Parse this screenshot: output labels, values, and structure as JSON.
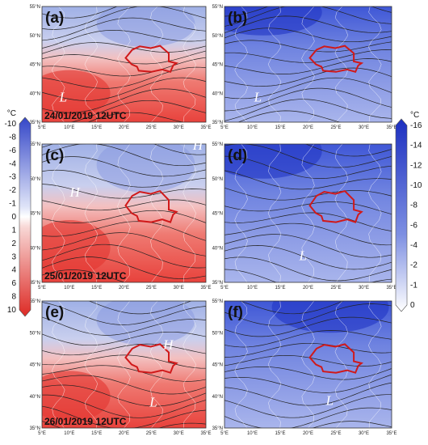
{
  "panels": [
    {
      "label": "(a)",
      "date": "24/01/2019 12UTC",
      "systems": [
        "L"
      ]
    },
    {
      "label": "(b)",
      "systems": [
        "L"
      ]
    },
    {
      "label": "(c)",
      "date": "25/01/2019 12UTC",
      "systems": [
        "H",
        "H"
      ]
    },
    {
      "label": "(d)",
      "systems": [
        "L"
      ]
    },
    {
      "label": "(e)",
      "date": "26/01/2019 12UTC",
      "systems": [
        "H",
        "L"
      ]
    },
    {
      "label": "(f)",
      "systems": [
        "L"
      ]
    }
  ],
  "lat_ticks": [
    "55°N",
    "50°N",
    "45°N",
    "40°N",
    "35°N"
  ],
  "lon_ticks": [
    "5°E",
    "10°E",
    "15°E",
    "20°E",
    "25°E",
    "30°E",
    "35°E"
  ],
  "colorbar_left": {
    "unit": "°C",
    "labels": [
      -10,
      -8,
      -6,
      -4,
      -3,
      -2,
      -1,
      0,
      1,
      2,
      3,
      4,
      6,
      8,
      10
    ]
  },
  "colorbar_right": {
    "unit": "°C",
    "labels": [
      -16,
      -14,
      -12,
      -10,
      -8,
      -6,
      -4,
      -2,
      -1,
      0
    ]
  }
}
